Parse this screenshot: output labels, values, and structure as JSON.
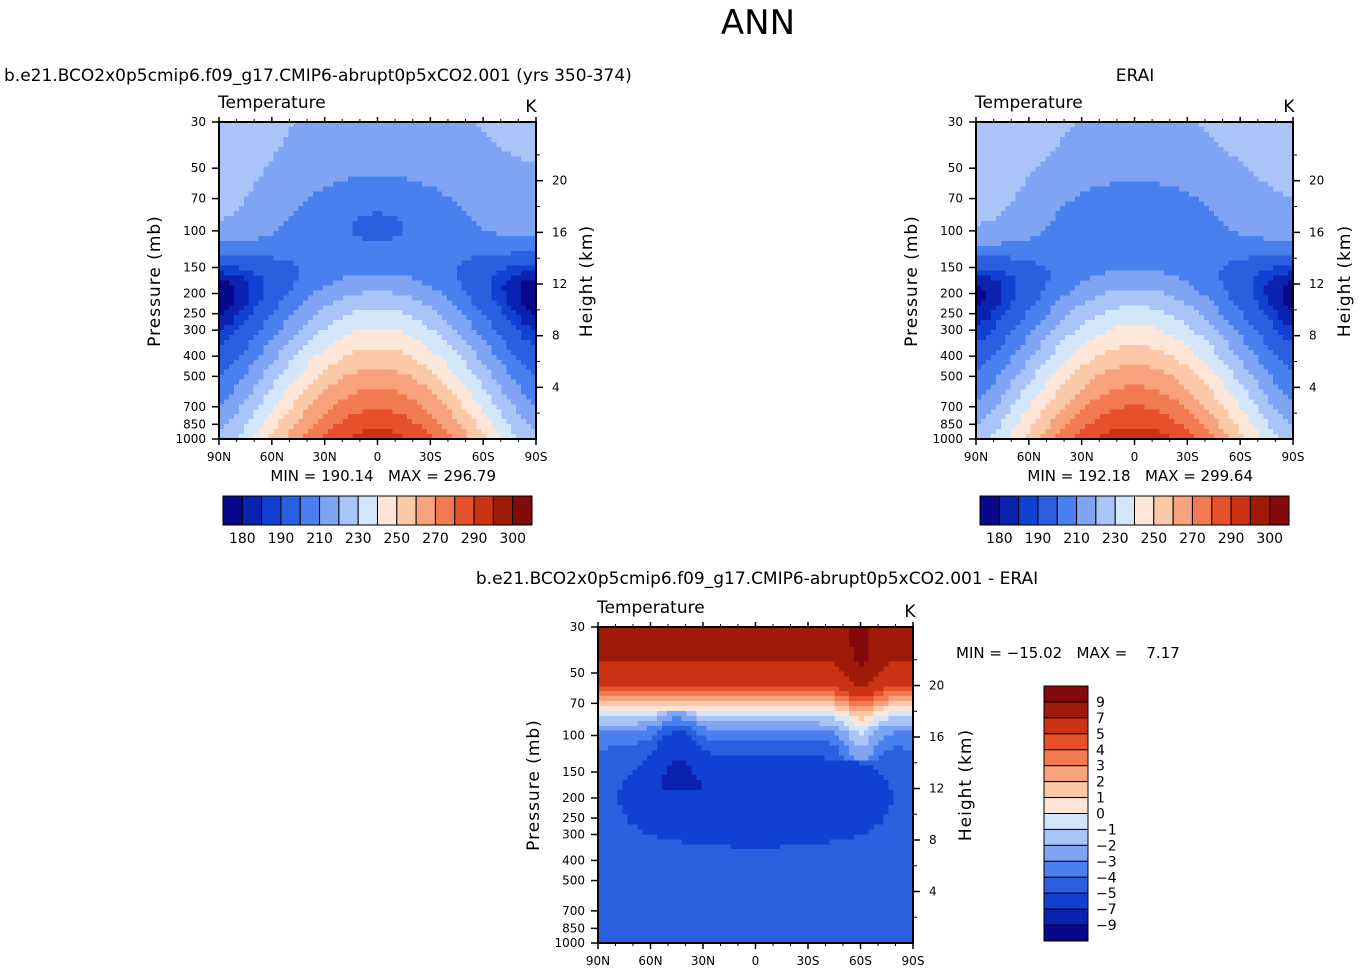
{
  "figure": {
    "title": "ANN"
  },
  "chart_data": [
    {
      "type": "heatmap",
      "title": "b.e21.BCO2x0p5cmip6.f09_g17.CMIP6-abrupt0p5xCO2.001 (yrs 350-374)",
      "variable": "Temperature",
      "units": "K",
      "ylabel": "Pressure (mb)",
      "y2label": "Height (km)",
      "x_ticks": [
        "90N",
        "60N",
        "30N",
        "0",
        "30S",
        "60S",
        "90S"
      ],
      "x_values": [
        90,
        60,
        30,
        0,
        -30,
        -60,
        -90
      ],
      "y_ticks": [
        30,
        50,
        70,
        100,
        150,
        200,
        250,
        300,
        400,
        500,
        700,
        850,
        1000
      ],
      "y2_ticks": [
        20,
        16,
        12,
        8,
        4
      ],
      "y_scale": "log",
      "ylim": [
        1000,
        30
      ],
      "min_text": "MIN = 190.14",
      "max_text": "MAX = 296.79",
      "min": 190.14,
      "max": 296.79,
      "levels": [
        180,
        185,
        190,
        200,
        210,
        220,
        230,
        240,
        250,
        260,
        270,
        280,
        290,
        295,
        300
      ],
      "colorbar_labels": [
        "180",
        "190",
        "210",
        "230",
        "250",
        "270",
        "290",
        "300"
      ],
      "colorbar_orientation": "horizontal",
      "colormap": "blue-white-red"
    },
    {
      "type": "heatmap",
      "title": "ERAI",
      "variable": "Temperature",
      "units": "K",
      "ylabel": "Pressure (mb)",
      "y2label": "Height (km)",
      "x_ticks": [
        "90N",
        "60N",
        "30N",
        "0",
        "30S",
        "60S",
        "90S"
      ],
      "x_values": [
        90,
        60,
        30,
        0,
        -30,
        -60,
        -90
      ],
      "y_ticks": [
        30,
        50,
        70,
        100,
        150,
        200,
        250,
        300,
        400,
        500,
        700,
        850,
        1000
      ],
      "y2_ticks": [
        20,
        16,
        12,
        8,
        4
      ],
      "y_scale": "log",
      "ylim": [
        1000,
        30
      ],
      "min_text": "MIN = 192.18",
      "max_text": "MAX = 299.64",
      "min": 192.18,
      "max": 299.64,
      "levels": [
        180,
        185,
        190,
        200,
        210,
        220,
        230,
        240,
        250,
        260,
        270,
        280,
        290,
        295,
        300
      ],
      "colorbar_labels": [
        "180",
        "190",
        "210",
        "230",
        "250",
        "270",
        "290",
        "300"
      ],
      "colorbar_orientation": "horizontal",
      "colormap": "blue-white-red"
    },
    {
      "type": "heatmap",
      "title": "b.e21.BCO2x0p5cmip6.f09_g17.CMIP6-abrupt0p5xCO2.001 - ERAI",
      "variable": "Temperature",
      "units": "K",
      "ylabel": "Pressure (mb)",
      "y2label": "Height (km)",
      "x_ticks": [
        "90N",
        "60N",
        "30N",
        "0",
        "30S",
        "60S",
        "90S"
      ],
      "x_values": [
        90,
        60,
        30,
        0,
        -30,
        -60,
        -90
      ],
      "y_ticks": [
        30,
        50,
        70,
        100,
        150,
        200,
        250,
        300,
        400,
        500,
        700,
        850,
        1000
      ],
      "y2_ticks": [
        20,
        16,
        12,
        8,
        4
      ],
      "y_scale": "log",
      "ylim": [
        1000,
        30
      ],
      "stats_text": "MIN = -15.02   MAX =    7.17",
      "min": -15.02,
      "max": 7.17,
      "levels": [
        -9,
        -7,
        -5,
        -4,
        -3,
        -2,
        -1,
        0,
        1,
        2,
        3,
        4,
        5,
        7,
        9
      ],
      "colorbar_labels": [
        "9",
        "7",
        "5",
        "4",
        "3",
        "2",
        "1",
        "0",
        "-1",
        "-2",
        "-3",
        "-4",
        "-5",
        "-7",
        "-9"
      ],
      "colorbar_orientation": "vertical",
      "colormap": "blue-white-red"
    }
  ],
  "palette": [
    "#08088c",
    "#0a22b0",
    "#1240d2",
    "#2a5fe0",
    "#4a7ff0",
    "#7fa4f4",
    "#a9c4f8",
    "#d4e6fa",
    "#fde6d8",
    "#fbc8a8",
    "#f7a27c",
    "#f27a50",
    "#e6502a",
    "#cc3214",
    "#a01a0a",
    "#820a0a"
  ]
}
